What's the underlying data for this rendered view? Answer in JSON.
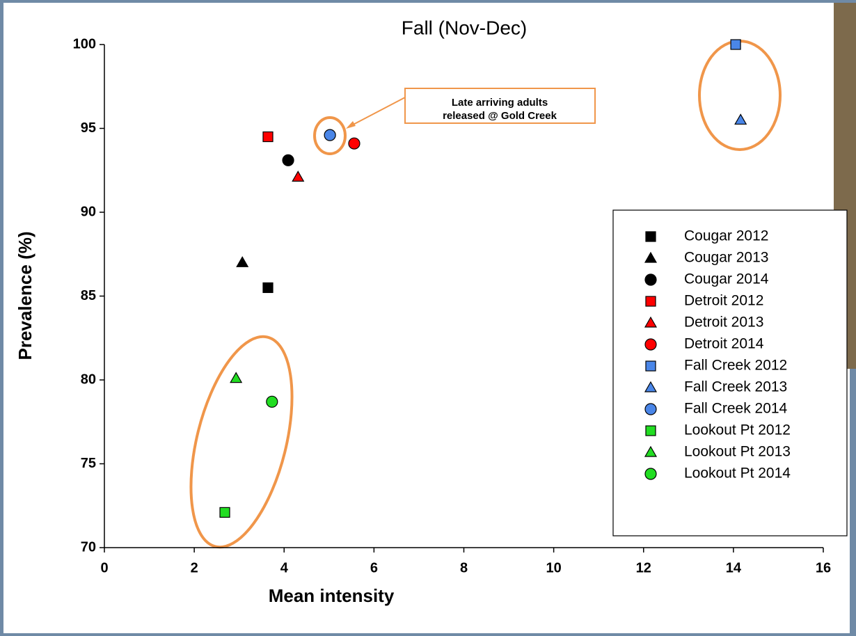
{
  "chart_data": {
    "type": "scatter",
    "title": "Fall (Nov-Dec)",
    "x_label": "Mean intensity",
    "y_label": "Prevalence (%)",
    "xlim": [
      0,
      16
    ],
    "xticks": [
      0,
      2,
      4,
      6,
      8,
      10,
      12,
      14,
      16
    ],
    "ylim": [
      70,
      100
    ],
    "yticks": [
      70,
      75,
      80,
      85,
      90,
      95,
      100
    ],
    "grid": false,
    "legend": "right",
    "annotation": [
      "Late arriving adults",
      "released @ Gold Creek"
    ],
    "series": [
      {
        "name": "Cougar 2012",
        "color": "#000000",
        "marker": "square",
        "x": [
          3.64
        ],
        "values": [
          85.5
        ]
      },
      {
        "name": "Cougar 2013",
        "color": "#000000",
        "marker": "triangle",
        "x": [
          3.07
        ],
        "values": [
          87.0
        ]
      },
      {
        "name": "Cougar 2014",
        "color": "#000000",
        "marker": "circle",
        "x": [
          4.09
        ],
        "values": [
          93.1
        ]
      },
      {
        "name": "Detroit 2012",
        "color": "#ff0000",
        "marker": "square",
        "x": [
          3.64
        ],
        "values": [
          94.5
        ]
      },
      {
        "name": "Detroit 2013",
        "color": "#ff0000",
        "marker": "triangle",
        "x": [
          4.31
        ],
        "values": [
          92.1
        ]
      },
      {
        "name": "Detroit 2014",
        "color": "#ff0000",
        "marker": "circle",
        "x": [
          5.56
        ],
        "values": [
          94.1
        ]
      },
      {
        "name": "Fall Creek 2012",
        "color": "#4a86e8",
        "marker": "square",
        "x": [
          14.05
        ],
        "values": [
          100.0
        ]
      },
      {
        "name": "Fall Creek 2013",
        "color": "#4a86e8",
        "marker": "triangle",
        "x": [
          14.16
        ],
        "values": [
          95.5
        ]
      },
      {
        "name": "Fall Creek 2014",
        "color": "#4a86e8",
        "marker": "circle",
        "x": [
          5.02
        ],
        "values": [
          94.6
        ]
      },
      {
        "name": "Lookout Pt 2012",
        "color": "#22dd22",
        "marker": "square",
        "x": [
          2.68
        ],
        "values": [
          72.1
        ]
      },
      {
        "name": "Lookout Pt 2013",
        "color": "#22dd22",
        "marker": "triangle",
        "x": [
          2.93
        ],
        "values": [
          80.1
        ]
      },
      {
        "name": "Lookout Pt 2014",
        "color": "#22dd22",
        "marker": "circle",
        "x": [
          3.73
        ],
        "values": [
          78.7
        ]
      }
    ]
  }
}
